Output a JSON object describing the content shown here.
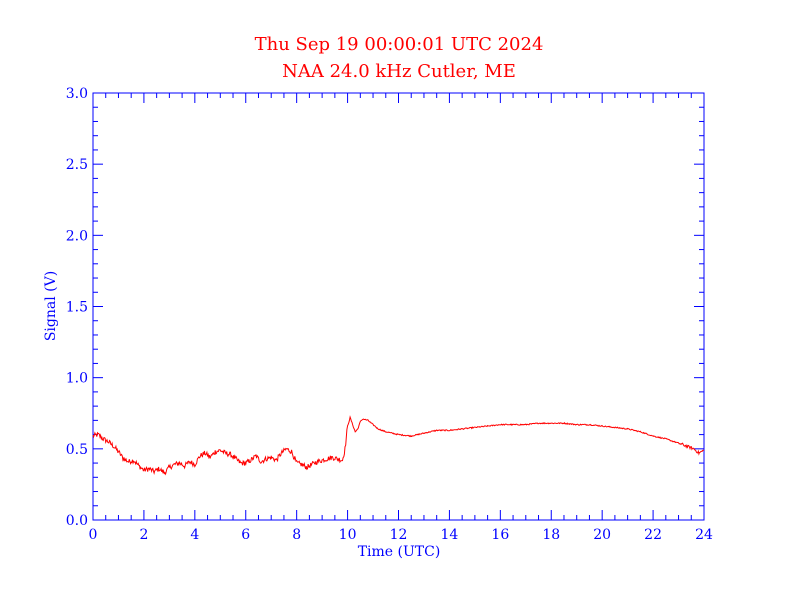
{
  "chart_data": {
    "type": "line",
    "title": "Thu Sep 19 00:00:01 UTC 2024",
    "subtitle": "NAA 24.0 kHz Cutler, ME",
    "xlabel": "Time (UTC)",
    "ylabel": "Signal (V)",
    "xlim": [
      0,
      24
    ],
    "ylim": [
      0.0,
      3.0
    ],
    "x_ticks": [
      0,
      2,
      4,
      6,
      8,
      10,
      12,
      14,
      16,
      18,
      20,
      22,
      24
    ],
    "x_tick_labels": [
      "0",
      "2",
      "4",
      "6",
      "8",
      "10",
      "12",
      "14",
      "16",
      "18",
      "20",
      "22",
      "24"
    ],
    "y_ticks": [
      0.0,
      0.5,
      1.0,
      1.5,
      2.0,
      2.5,
      3.0
    ],
    "y_tick_labels": [
      "0.0",
      "0.5",
      "1.0",
      "1.5",
      "2.0",
      "2.5",
      "3.0"
    ],
    "grid": false,
    "colors": {
      "title": "#ff0000",
      "axes": "#0000ff",
      "series": "#ff0000"
    },
    "series": [
      {
        "name": "Signal",
        "x": [
          0,
          0.2,
          0.4,
          0.6,
          0.8,
          1.0,
          1.2,
          1.4,
          1.6,
          1.8,
          2.0,
          2.2,
          2.4,
          2.6,
          2.8,
          3.0,
          3.2,
          3.4,
          3.6,
          3.8,
          4.0,
          4.2,
          4.4,
          4.6,
          4.8,
          5.0,
          5.2,
          5.4,
          5.6,
          5.8,
          6.0,
          6.2,
          6.4,
          6.6,
          6.8,
          7.0,
          7.2,
          7.4,
          7.6,
          7.8,
          8.0,
          8.2,
          8.4,
          8.6,
          8.8,
          9.0,
          9.2,
          9.4,
          9.6,
          9.8,
          9.9,
          10.0,
          10.1,
          10.2,
          10.3,
          10.4,
          10.5,
          10.6,
          10.8,
          11.0,
          11.2,
          11.5,
          12.0,
          12.5,
          13.0,
          13.5,
          14.0,
          14.5,
          15.0,
          15.5,
          16.0,
          16.5,
          17.0,
          17.5,
          18.0,
          18.5,
          19.0,
          19.5,
          20.0,
          20.5,
          21.0,
          21.5,
          22.0,
          22.5,
          23.0,
          23.3,
          23.6,
          23.8,
          24.0
        ],
        "y": [
          0.59,
          0.6,
          0.57,
          0.55,
          0.52,
          0.48,
          0.43,
          0.41,
          0.42,
          0.38,
          0.35,
          0.36,
          0.34,
          0.36,
          0.33,
          0.37,
          0.39,
          0.4,
          0.38,
          0.41,
          0.39,
          0.45,
          0.47,
          0.44,
          0.48,
          0.49,
          0.47,
          0.46,
          0.43,
          0.4,
          0.4,
          0.42,
          0.45,
          0.41,
          0.43,
          0.44,
          0.42,
          0.47,
          0.5,
          0.48,
          0.4,
          0.39,
          0.37,
          0.39,
          0.41,
          0.42,
          0.43,
          0.44,
          0.43,
          0.42,
          0.5,
          0.66,
          0.72,
          0.67,
          0.62,
          0.64,
          0.69,
          0.71,
          0.7,
          0.67,
          0.64,
          0.62,
          0.6,
          0.59,
          0.61,
          0.63,
          0.63,
          0.64,
          0.65,
          0.66,
          0.67,
          0.67,
          0.67,
          0.68,
          0.68,
          0.68,
          0.67,
          0.67,
          0.66,
          0.65,
          0.64,
          0.62,
          0.59,
          0.57,
          0.54,
          0.52,
          0.5,
          0.47,
          0.49
        ]
      }
    ]
  }
}
